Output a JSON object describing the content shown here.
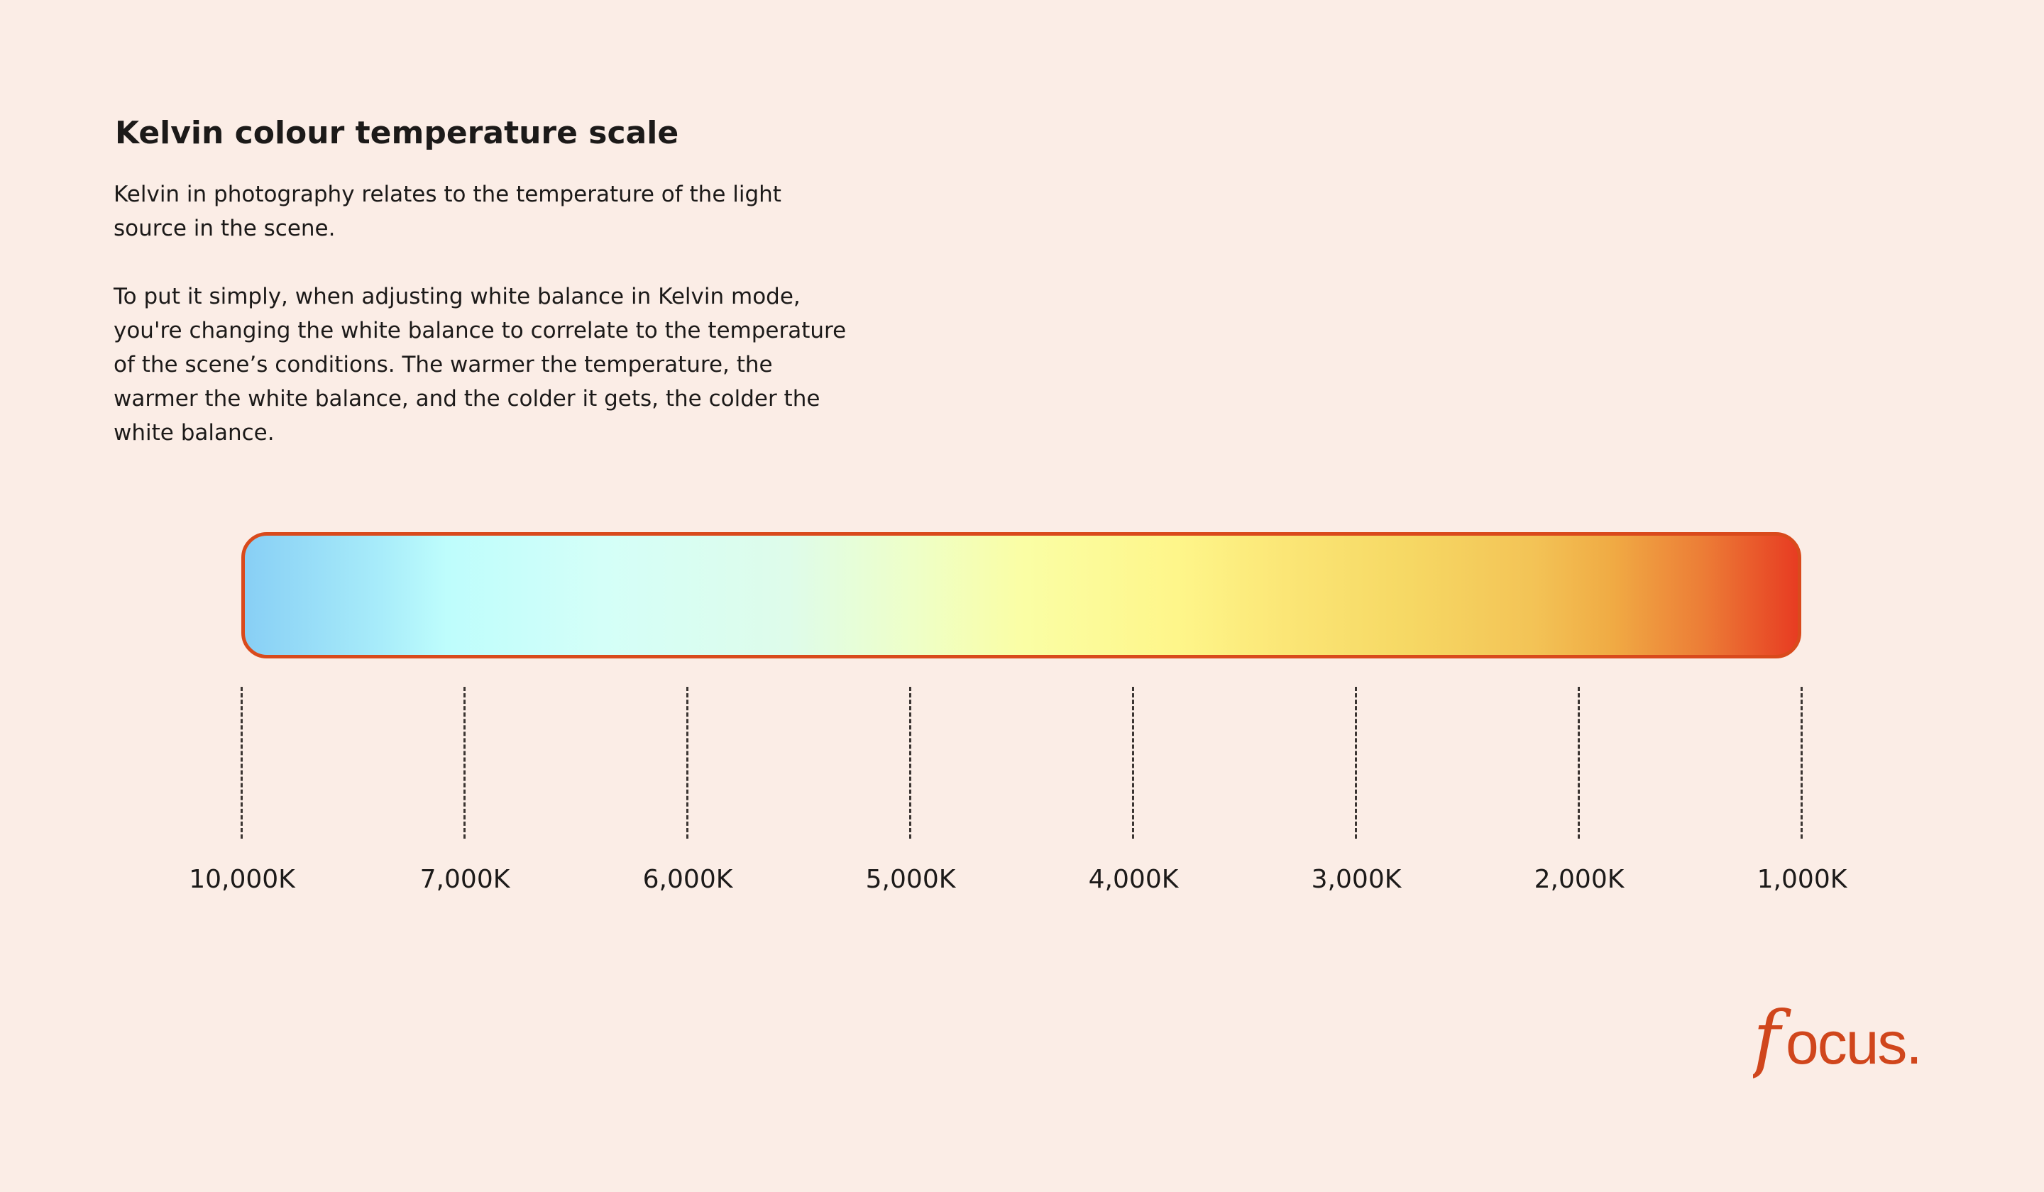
{
  "header": {
    "title": "Kelvin colour temperature scale",
    "paragraph_1": "Kelvin in photography relates to the temperature of the light source in the scene.",
    "paragraph_2": "To put it simply, when adjusting white balance in Kelvin mode, you're changing the white balance to correlate to the temperature of the scene’s conditions. The warmer the temperature, the warmer the white balance, and the colder it gets, the colder the white balance."
  },
  "scale": {
    "labels": [
      "10,000K",
      "7,000K",
      "6,000K",
      "5,000K",
      "4,000K",
      "3,000K",
      "2,000K",
      "1,000K"
    ],
    "border_color": "#D94A1C",
    "gradient_colors": [
      "#88CFF5",
      "#BEFDFC",
      "#D4FFF8",
      "#FAFEA5",
      "#FEF68A",
      "#F3C356",
      "#E73C22"
    ]
  },
  "brand": {
    "logo_text": "focus.",
    "color": "#D0461C"
  },
  "colors": {
    "background": "#FBEDE6",
    "text": "#1c1a19"
  }
}
